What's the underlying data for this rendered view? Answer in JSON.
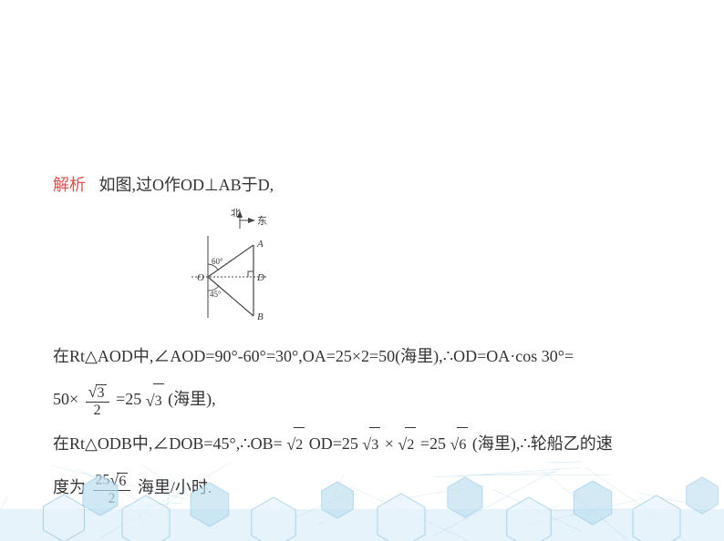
{
  "label": "解析",
  "line1_text": "如图,过O作OD⊥AB于D,",
  "diagram": {
    "north_label": "北",
    "east_label": "东",
    "A": "A",
    "B": "B",
    "O": "O",
    "D": "D",
    "angle_top": "60°",
    "angle_bottom": "45°",
    "colors": {
      "stroke": "#444444",
      "text": "#333333"
    }
  },
  "line2_a": "在Rt△AOD中,∠AOD=90°-60°=30°,OA=25×2=50(海里),",
  "line2_b": "OD=OA·cos 30°=",
  "line3_a": "50×",
  "frac_sqrt3_2": {
    "num_sqrt": "3",
    "den": "2"
  },
  "line3_b": "=25",
  "sqrt3": "3",
  "line3_c": "(海里),",
  "line4_a": "在Rt△ODB中,∠DOB=45°,",
  "line4_b": "OB=",
  "sqrt2": "2",
  "line4_c": "OD=25",
  "sqrt3b": "3",
  "line4_d": "×",
  "sqrt2b": "2",
  "line4_e": "=25",
  "sqrt6": "6",
  "line4_f": "(海里),",
  "line4_g": "轮船乙的速",
  "line5_a": "度为",
  "frac_25sqrt6_2": {
    "num_prefix": "25",
    "num_sqrt": "6",
    "den": "2"
  },
  "line5_b": "海里/小时.",
  "bg": {
    "band_color": "#cfe8f6",
    "hex_stroke": "#8fc4e2",
    "hex_fill1": "#e6f3fb",
    "hex_fill2": "#bcdff0"
  }
}
